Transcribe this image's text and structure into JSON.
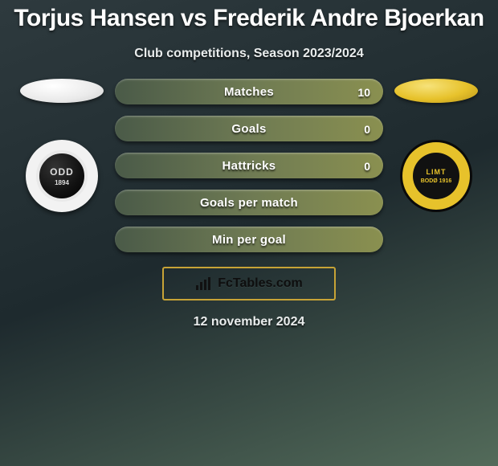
{
  "title": "Torjus Hansen vs Frederik Andre Bjoerkan",
  "subtitle": "Club competitions, Season 2023/2024",
  "date": "12 november 2024",
  "brand": "FcTables.com",
  "left_ellipse_color": "#eaeaea",
  "right_ellipse_color": "#e7c22b",
  "left_club": {
    "ring": "#f2f2f2",
    "text": "ODD",
    "year": "1894"
  },
  "right_club": {
    "top": "LIMT",
    "bot": "BODØ 1916"
  },
  "accent_border": "#c7a336",
  "bar_gradient": [
    "#4a5a48",
    "#6e7a53",
    "#8a9050"
  ],
  "bars": [
    {
      "label": "Matches",
      "value": "10"
    },
    {
      "label": "Goals",
      "value": "0"
    },
    {
      "label": "Hattricks",
      "value": "0"
    },
    {
      "label": "Goals per match",
      "value": ""
    },
    {
      "label": "Min per goal",
      "value": ""
    }
  ]
}
